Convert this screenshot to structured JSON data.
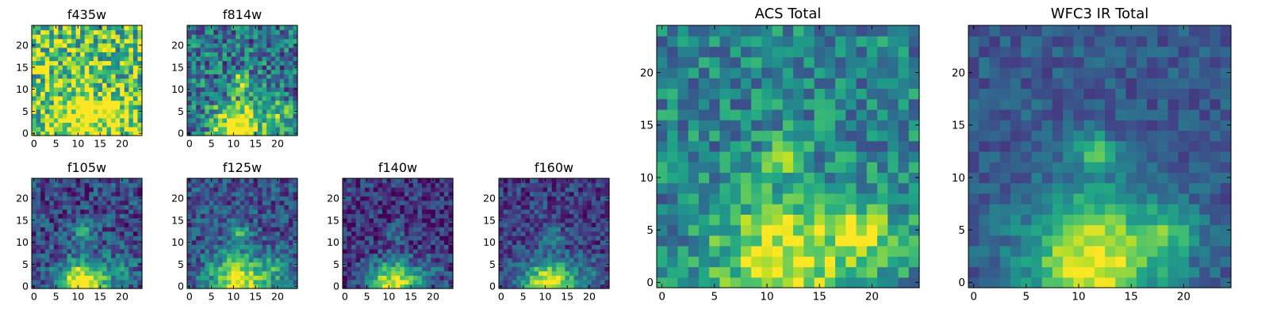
{
  "chart_data": {
    "type": "heatmap",
    "panels": [
      {
        "title": "f435w",
        "grid": [
          25,
          25
        ],
        "xticks": [
          0,
          5,
          10,
          15,
          20
        ],
        "yticks": [
          0,
          5,
          10,
          15,
          20
        ],
        "xlim": [
          0,
          25
        ],
        "ylim": [
          0,
          25
        ],
        "blobs": [
          {
            "x": 11.5,
            "y": 12,
            "amp": 0.35,
            "sigma": 1.5
          },
          {
            "x": 11,
            "y": 3,
            "amp": 0.35,
            "sigma": 4.5
          },
          {
            "x": 20,
            "y": 4,
            "amp": 0.25,
            "sigma": 3
          }
        ],
        "base": 0.72,
        "noise": 0.38,
        "colormap": "viridis"
      },
      {
        "title": "f814w",
        "grid": [
          25,
          25
        ],
        "xticks": [
          0,
          5,
          10,
          15,
          20
        ],
        "yticks": [
          0,
          5,
          10,
          15,
          20
        ],
        "xlim": [
          0,
          25
        ],
        "ylim": [
          0,
          25
        ],
        "blobs": [
          {
            "x": 11.5,
            "y": 12,
            "amp": 0.4,
            "sigma": 1.4
          },
          {
            "x": 11,
            "y": 1.5,
            "amp": 0.75,
            "sigma": 4
          },
          {
            "x": 20,
            "y": 4,
            "amp": 0.3,
            "sigma": 2.5
          }
        ],
        "base": 0.38,
        "noise": 0.3,
        "colormap": "viridis"
      },
      {
        "title": "f105w",
        "grid": [
          25,
          25
        ],
        "xticks": [
          0,
          5,
          10,
          15,
          20
        ],
        "yticks": [
          0,
          5,
          10,
          15,
          20
        ],
        "xlim": [
          0,
          25
        ],
        "ylim": [
          0,
          25
        ],
        "blobs": [
          {
            "x": 11.5,
            "y": 12,
            "amp": 0.35,
            "sigma": 1.6
          },
          {
            "x": 11,
            "y": 0.5,
            "amp": 0.85,
            "sigma": 4
          },
          {
            "x": 20,
            "y": 4,
            "amp": 0.2,
            "sigma": 2.5
          }
        ],
        "base": 0.22,
        "noise": 0.22,
        "colormap": "viridis"
      },
      {
        "title": "f125w",
        "grid": [
          25,
          25
        ],
        "xticks": [
          0,
          5,
          10,
          15,
          20
        ],
        "yticks": [
          0,
          5,
          10,
          15,
          20
        ],
        "xlim": [
          0,
          25
        ],
        "ylim": [
          0,
          25
        ],
        "blobs": [
          {
            "x": 11.5,
            "y": 12,
            "amp": 0.35,
            "sigma": 1.6
          },
          {
            "x": 11,
            "y": 1,
            "amp": 0.75,
            "sigma": 4.5
          },
          {
            "x": 20,
            "y": 4,
            "amp": 0.25,
            "sigma": 2.5
          }
        ],
        "base": 0.25,
        "noise": 0.2,
        "colormap": "viridis"
      },
      {
        "title": "f140w",
        "grid": [
          25,
          25
        ],
        "xticks": [
          0,
          5,
          10,
          15,
          20
        ],
        "yticks": [
          0,
          5,
          10,
          15,
          20
        ],
        "xlim": [
          0,
          25
        ],
        "ylim": [
          0,
          25
        ],
        "blobs": [
          {
            "x": 11.5,
            "y": 12,
            "amp": 0.25,
            "sigma": 1.6
          },
          {
            "x": 11,
            "y": 0,
            "amp": 0.85,
            "sigma": 4
          },
          {
            "x": 20,
            "y": 3,
            "amp": 0.15,
            "sigma": 2.5
          }
        ],
        "base": 0.15,
        "noise": 0.2,
        "colormap": "viridis"
      },
      {
        "title": "f160w",
        "grid": [
          25,
          25
        ],
        "xticks": [
          0,
          5,
          10,
          15,
          20
        ],
        "yticks": [
          0,
          5,
          10,
          15,
          20
        ],
        "xlim": [
          0,
          25
        ],
        "ylim": [
          0,
          25
        ],
        "blobs": [
          {
            "x": 11.5,
            "y": 12,
            "amp": 0.28,
            "sigma": 1.6
          },
          {
            "x": 11,
            "y": 0,
            "amp": 0.85,
            "sigma": 4.2
          },
          {
            "x": 20,
            "y": 3,
            "amp": 0.15,
            "sigma": 2.5
          }
        ],
        "base": 0.18,
        "noise": 0.18,
        "colormap": "viridis"
      },
      {
        "title": "ACS Total",
        "grid": [
          25,
          25
        ],
        "xticks": [
          0,
          5,
          10,
          15,
          20
        ],
        "yticks": [
          0,
          5,
          10,
          15,
          20
        ],
        "xlim": [
          0,
          25
        ],
        "ylim": [
          0,
          25
        ],
        "blobs": [
          {
            "x": 11.5,
            "y": 12.5,
            "amp": 0.45,
            "sigma": 1.2
          },
          {
            "x": 11.5,
            "y": 2.5,
            "amp": 0.55,
            "sigma": 4.2
          },
          {
            "x": 19.5,
            "y": 4.5,
            "amp": 0.35,
            "sigma": 2.5
          }
        ],
        "base": 0.45,
        "noise": 0.22,
        "colormap": "viridis"
      },
      {
        "title": "WFC3 IR Total",
        "grid": [
          25,
          25
        ],
        "xticks": [
          0,
          5,
          10,
          15,
          20
        ],
        "yticks": [
          0,
          5,
          10,
          15,
          20
        ],
        "xlim": [
          0,
          25
        ],
        "ylim": [
          0,
          25
        ],
        "blobs": [
          {
            "x": 11.5,
            "y": 12.5,
            "amp": 0.4,
            "sigma": 1.3
          },
          {
            "x": 11.5,
            "y": 2,
            "amp": 0.7,
            "sigma": 4.5
          },
          {
            "x": 19,
            "y": 5,
            "amp": 0.3,
            "sigma": 1.8
          }
        ],
        "base": 0.28,
        "noise": 0.12,
        "colormap": "viridis"
      }
    ]
  }
}
